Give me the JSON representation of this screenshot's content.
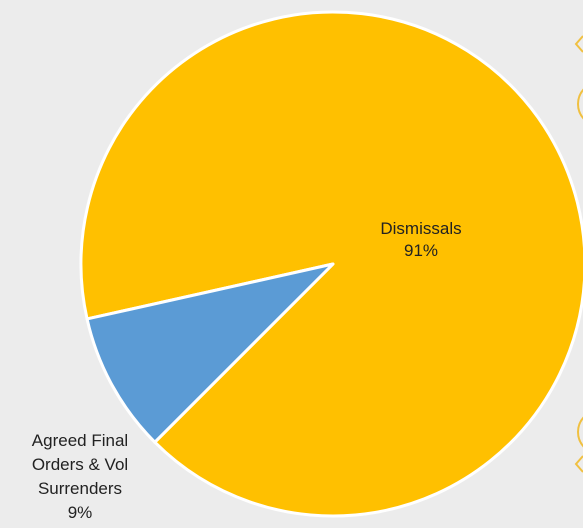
{
  "chart_data": {
    "type": "pie",
    "title": "",
    "slices": [
      {
        "name": "Dismissals",
        "value": 91,
        "label": "91%",
        "color": "#ffc000"
      },
      {
        "name": "Agreed Final Orders & Vol Surrenders",
        "value": 9,
        "label": "9%",
        "color": "#5b9bd5"
      }
    ],
    "legend": "none",
    "border_color": "#ffffff"
  }
}
